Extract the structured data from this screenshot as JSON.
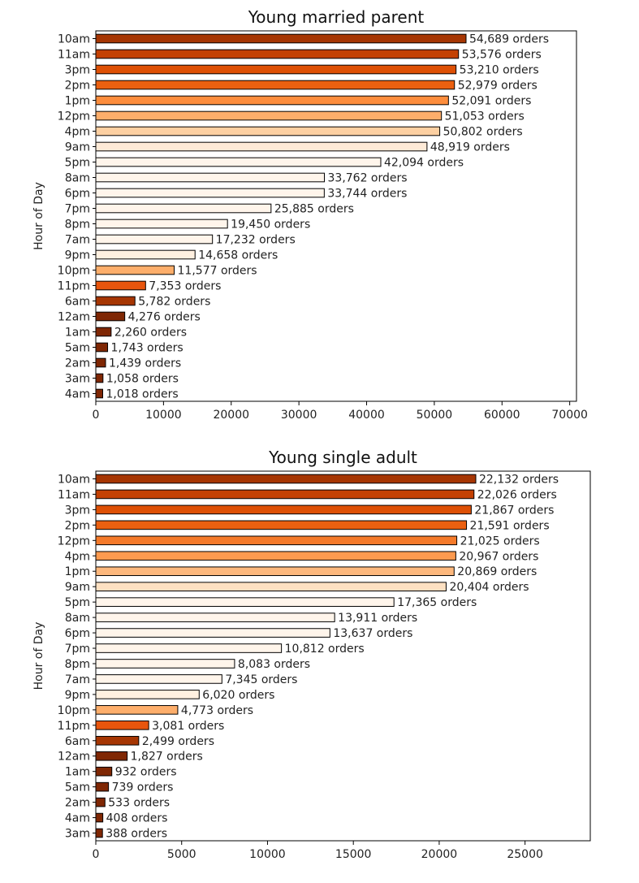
{
  "chart_data": [
    {
      "type": "bar",
      "orientation": "horizontal",
      "title": "Young married parent",
      "ylabel": "Hour of Day",
      "xlabel": "",
      "xlim": [
        0,
        71000
      ],
      "xticks": [
        0,
        10000,
        20000,
        30000,
        40000,
        50000,
        60000,
        70000
      ],
      "value_suffix": " orders",
      "categories": [
        "10am",
        "11am",
        "3pm",
        "2pm",
        "1pm",
        "12pm",
        "4pm",
        "9am",
        "5pm",
        "8am",
        "6pm",
        "7pm",
        "8pm",
        "7am",
        "9pm",
        "10pm",
        "11pm",
        "6am",
        "12am",
        "1am",
        "5am",
        "2am",
        "3am",
        "4am"
      ],
      "values": [
        54689,
        53576,
        53210,
        52979,
        52091,
        51053,
        50802,
        48919,
        42094,
        33762,
        33744,
        25885,
        19450,
        17232,
        14658,
        11577,
        7353,
        5782,
        4276,
        2260,
        1743,
        1439,
        1058,
        1018
      ],
      "colors": [
        "#a63603",
        "#c44103",
        "#de5005",
        "#eb6010",
        "#fd8d3c",
        "#fdae6b",
        "#fdd0a2",
        "#feead7",
        "#fff5eb",
        "#fff5eb",
        "#fff5eb",
        "#fff5eb",
        "#fff5eb",
        "#fff5eb",
        "#fff0e0",
        "#fdae6b",
        "#e8550d",
        "#a63603",
        "#7f2704",
        "#7f2704",
        "#7f2704",
        "#7f2704",
        "#7f2704",
        "#7f2704"
      ]
    },
    {
      "type": "bar",
      "orientation": "horizontal",
      "title": "Young single adult",
      "ylabel": "Hour of Day",
      "xlabel": "",
      "xlim": [
        0,
        28800
      ],
      "xticks": [
        0,
        5000,
        10000,
        15000,
        20000,
        25000
      ],
      "value_suffix": " orders",
      "categories": [
        "10am",
        "11am",
        "3pm",
        "2pm",
        "12pm",
        "4pm",
        "1pm",
        "9am",
        "5pm",
        "8am",
        "6pm",
        "7pm",
        "8pm",
        "7am",
        "9pm",
        "10pm",
        "11pm",
        "6am",
        "12am",
        "1am",
        "5am",
        "2am",
        "4am",
        "3am"
      ],
      "values": [
        22132,
        22026,
        21867,
        21591,
        21025,
        20967,
        20869,
        20404,
        17365,
        13911,
        13637,
        10812,
        8083,
        7345,
        6020,
        4773,
        3081,
        2499,
        1827,
        932,
        739,
        533,
        408,
        388
      ],
      "colors": [
        "#a63603",
        "#c44103",
        "#de5005",
        "#eb6010",
        "#f57a2a",
        "#fd9a4f",
        "#fdb87d",
        "#fde0c2",
        "#fff5eb",
        "#fff5eb",
        "#fff5eb",
        "#fff5eb",
        "#fff5eb",
        "#fff5eb",
        "#fff0e0",
        "#fdae6b",
        "#e8550d",
        "#a63603",
        "#7f2704",
        "#7f2704",
        "#7f2704",
        "#7f2704",
        "#7f2704",
        "#7f2704"
      ]
    }
  ]
}
